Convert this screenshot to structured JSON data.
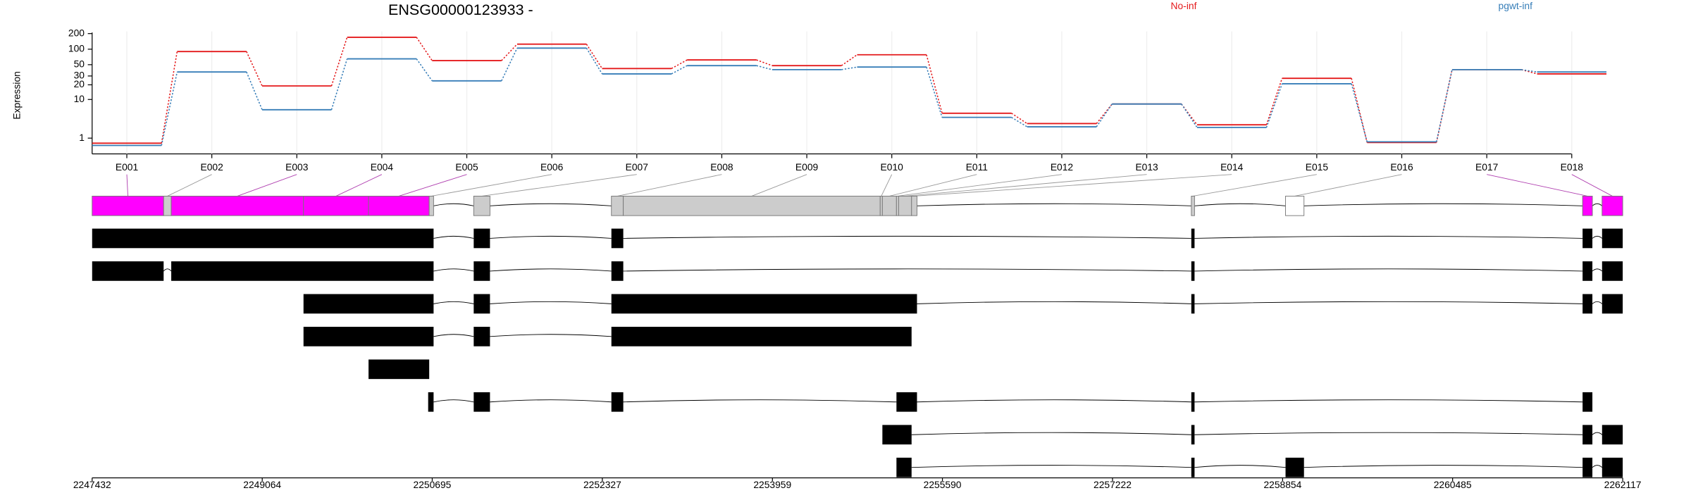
{
  "chart_data": {
    "type": "line",
    "title": "ENSG00000123933 -",
    "y_label": "Expression",
    "yscale": "log1p",
    "ylim": [
      0,
      200
    ],
    "yticks": [
      1,
      10,
      20,
      30,
      50,
      100,
      200
    ],
    "grid": true,
    "categories": [
      "E001",
      "E002",
      "E003",
      "E004",
      "E005",
      "E006",
      "E007",
      "E008",
      "E009",
      "E010",
      "E011",
      "E012",
      "E013",
      "E014",
      "E015",
      "E016",
      "E017",
      "E018"
    ],
    "series": [
      {
        "name": "No-inf",
        "color": "#e41a1c",
        "values": [
          0.6,
          90,
          19,
          170,
          60,
          125,
          42,
          62,
          48,
          78,
          5,
          2.8,
          8,
          2.6,
          27,
          0.65,
          40,
          33
        ]
      },
      {
        "name": "pgwt-inf",
        "color": "#377eb8",
        "values": [
          0.45,
          36,
          6,
          65,
          24,
          105,
          33,
          48,
          40,
          45,
          4,
          2.3,
          8,
          2.2,
          21,
          0.7,
          40,
          36
        ]
      }
    ],
    "gene_model": {
      "xlim": [
        2247432,
        2262117
      ],
      "xticks": [
        2247432,
        2249064,
        2250695,
        2252327,
        2253959,
        2255590,
        2257222,
        2258854,
        2260485,
        2262117
      ],
      "exons": [
        {
          "start": 2247432,
          "end": 2248118,
          "color": "#ff00ff"
        },
        {
          "start": 2248118,
          "end": 2248191,
          "color": "#cccccc"
        },
        {
          "start": 2248191,
          "end": 2249460,
          "color": "#ff00ff"
        },
        {
          "start": 2249460,
          "end": 2250084,
          "color": "#ff00ff"
        },
        {
          "start": 2250084,
          "end": 2250666,
          "color": "#ff00ff"
        },
        {
          "start": 2250666,
          "end": 2250708,
          "color": "#cccccc"
        },
        {
          "start": 2251093,
          "end": 2251249,
          "color": "#cccccc"
        },
        {
          "start": 2252414,
          "end": 2252528,
          "color": "#cccccc"
        },
        {
          "start": 2252528,
          "end": 2254993,
          "color": "#cccccc"
        },
        {
          "start": 2254993,
          "end": 2255014,
          "color": "#cccccc"
        },
        {
          "start": 2255014,
          "end": 2255149,
          "color": "#cccccc"
        },
        {
          "start": 2255149,
          "end": 2255170,
          "color": "#cccccc"
        },
        {
          "start": 2255170,
          "end": 2255294,
          "color": "#cccccc"
        },
        {
          "start": 2255294,
          "end": 2255346,
          "color": "#cccccc"
        },
        {
          "start": 2257978,
          "end": 2258009,
          "color": "#cccccc"
        },
        {
          "start": 2258882,
          "end": 2259059,
          "color": "#ffffff"
        },
        {
          "start": 2261732,
          "end": 2261826,
          "color": "#ff00ff"
        },
        {
          "start": 2261919,
          "end": 2262117,
          "color": "#ff00ff"
        }
      ],
      "transcripts": [
        [
          [
            2247432,
            2250708
          ],
          [
            2251093,
            2251249
          ],
          [
            2252414,
            2252528
          ],
          [
            2257978,
            2258009
          ],
          [
            2261732,
            2261826
          ],
          [
            2261919,
            2262117
          ]
        ],
        [
          [
            2247432,
            2248118
          ],
          [
            2248191,
            2250708
          ],
          [
            2251093,
            2251249
          ],
          [
            2252414,
            2252528
          ],
          [
            2257978,
            2258009
          ],
          [
            2261732,
            2261826
          ],
          [
            2261919,
            2262117
          ]
        ],
        [
          [
            2249460,
            2250708
          ],
          [
            2251093,
            2251249
          ],
          [
            2252414,
            2255346
          ],
          [
            2257978,
            2258009
          ],
          [
            2261732,
            2261826
          ],
          [
            2261919,
            2262117
          ]
        ],
        [
          [
            2249460,
            2250708
          ],
          [
            2251093,
            2251249
          ],
          [
            2252414,
            2255294
          ]
        ],
        [
          [
            2250084,
            2250666
          ]
        ],
        [
          [
            2250656,
            2250708
          ],
          [
            2251093,
            2251249
          ],
          [
            2252414,
            2252528
          ],
          [
            2255149,
            2255346
          ],
          [
            2257978,
            2258009
          ],
          [
            2261732,
            2261826
          ]
        ],
        [
          [
            2255014,
            2255294
          ],
          [
            2257978,
            2258009
          ],
          [
            2261732,
            2261826
          ],
          [
            2261919,
            2262117
          ]
        ],
        [
          [
            2255149,
            2255294
          ],
          [
            2257978,
            2258009
          ],
          [
            2258882,
            2259059
          ],
          [
            2261732,
            2261826
          ],
          [
            2261919,
            2262117
          ]
        ]
      ]
    }
  }
}
